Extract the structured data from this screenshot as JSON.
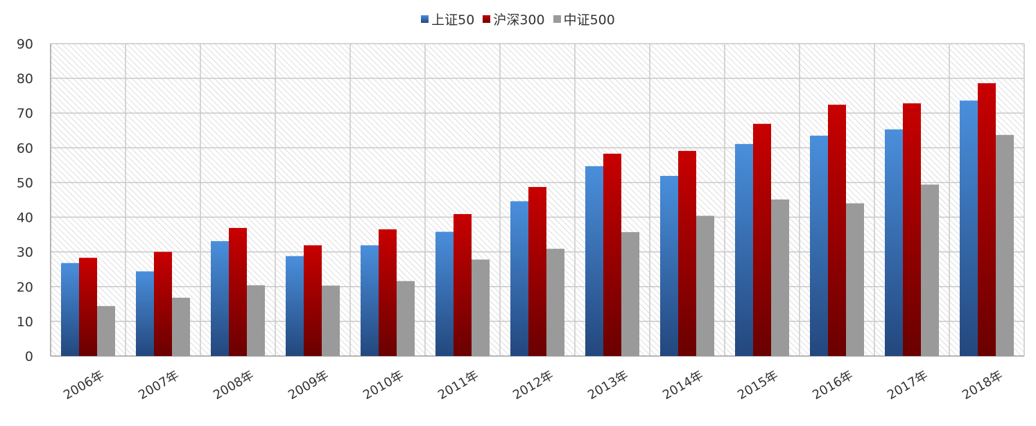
{
  "chart_data": {
    "type": "bar",
    "categories": [
      "2006年",
      "2007年",
      "2008年",
      "2009年",
      "2010年",
      "2011年",
      "2012年",
      "2013年",
      "2014年",
      "2015年",
      "2016年",
      "2017年",
      "2018年"
    ],
    "series": [
      {
        "name": "上证50",
        "color": "#4a8fdc",
        "color_dark": "#23477d",
        "values": [
          26.8,
          24.4,
          33.1,
          28.8,
          31.9,
          35.8,
          44.6,
          54.7,
          51.9,
          61.1,
          63.5,
          65.3,
          73.6
        ]
      },
      {
        "name": "沪深300",
        "color": "#c00000",
        "color_dark": "#6e0000",
        "values": [
          28.3,
          30.0,
          36.9,
          31.9,
          36.5,
          40.9,
          48.7,
          58.3,
          59.1,
          66.9,
          72.4,
          72.8,
          78.6
        ]
      },
      {
        "name": "中证500",
        "color": "#9a9a9a",
        "color_dark": "#9a9a9a",
        "values": [
          14.4,
          16.8,
          20.4,
          20.3,
          21.6,
          27.8,
          30.9,
          35.7,
          40.4,
          45.1,
          44.0,
          49.4,
          63.7
        ]
      }
    ],
    "yticks": [
      "0",
      "10",
      "20",
      "30",
      "40",
      "50",
      "60",
      "70",
      "80",
      "90"
    ],
    "ylim": [
      0,
      90
    ],
    "grid": true,
    "legend_position": "top-center"
  }
}
